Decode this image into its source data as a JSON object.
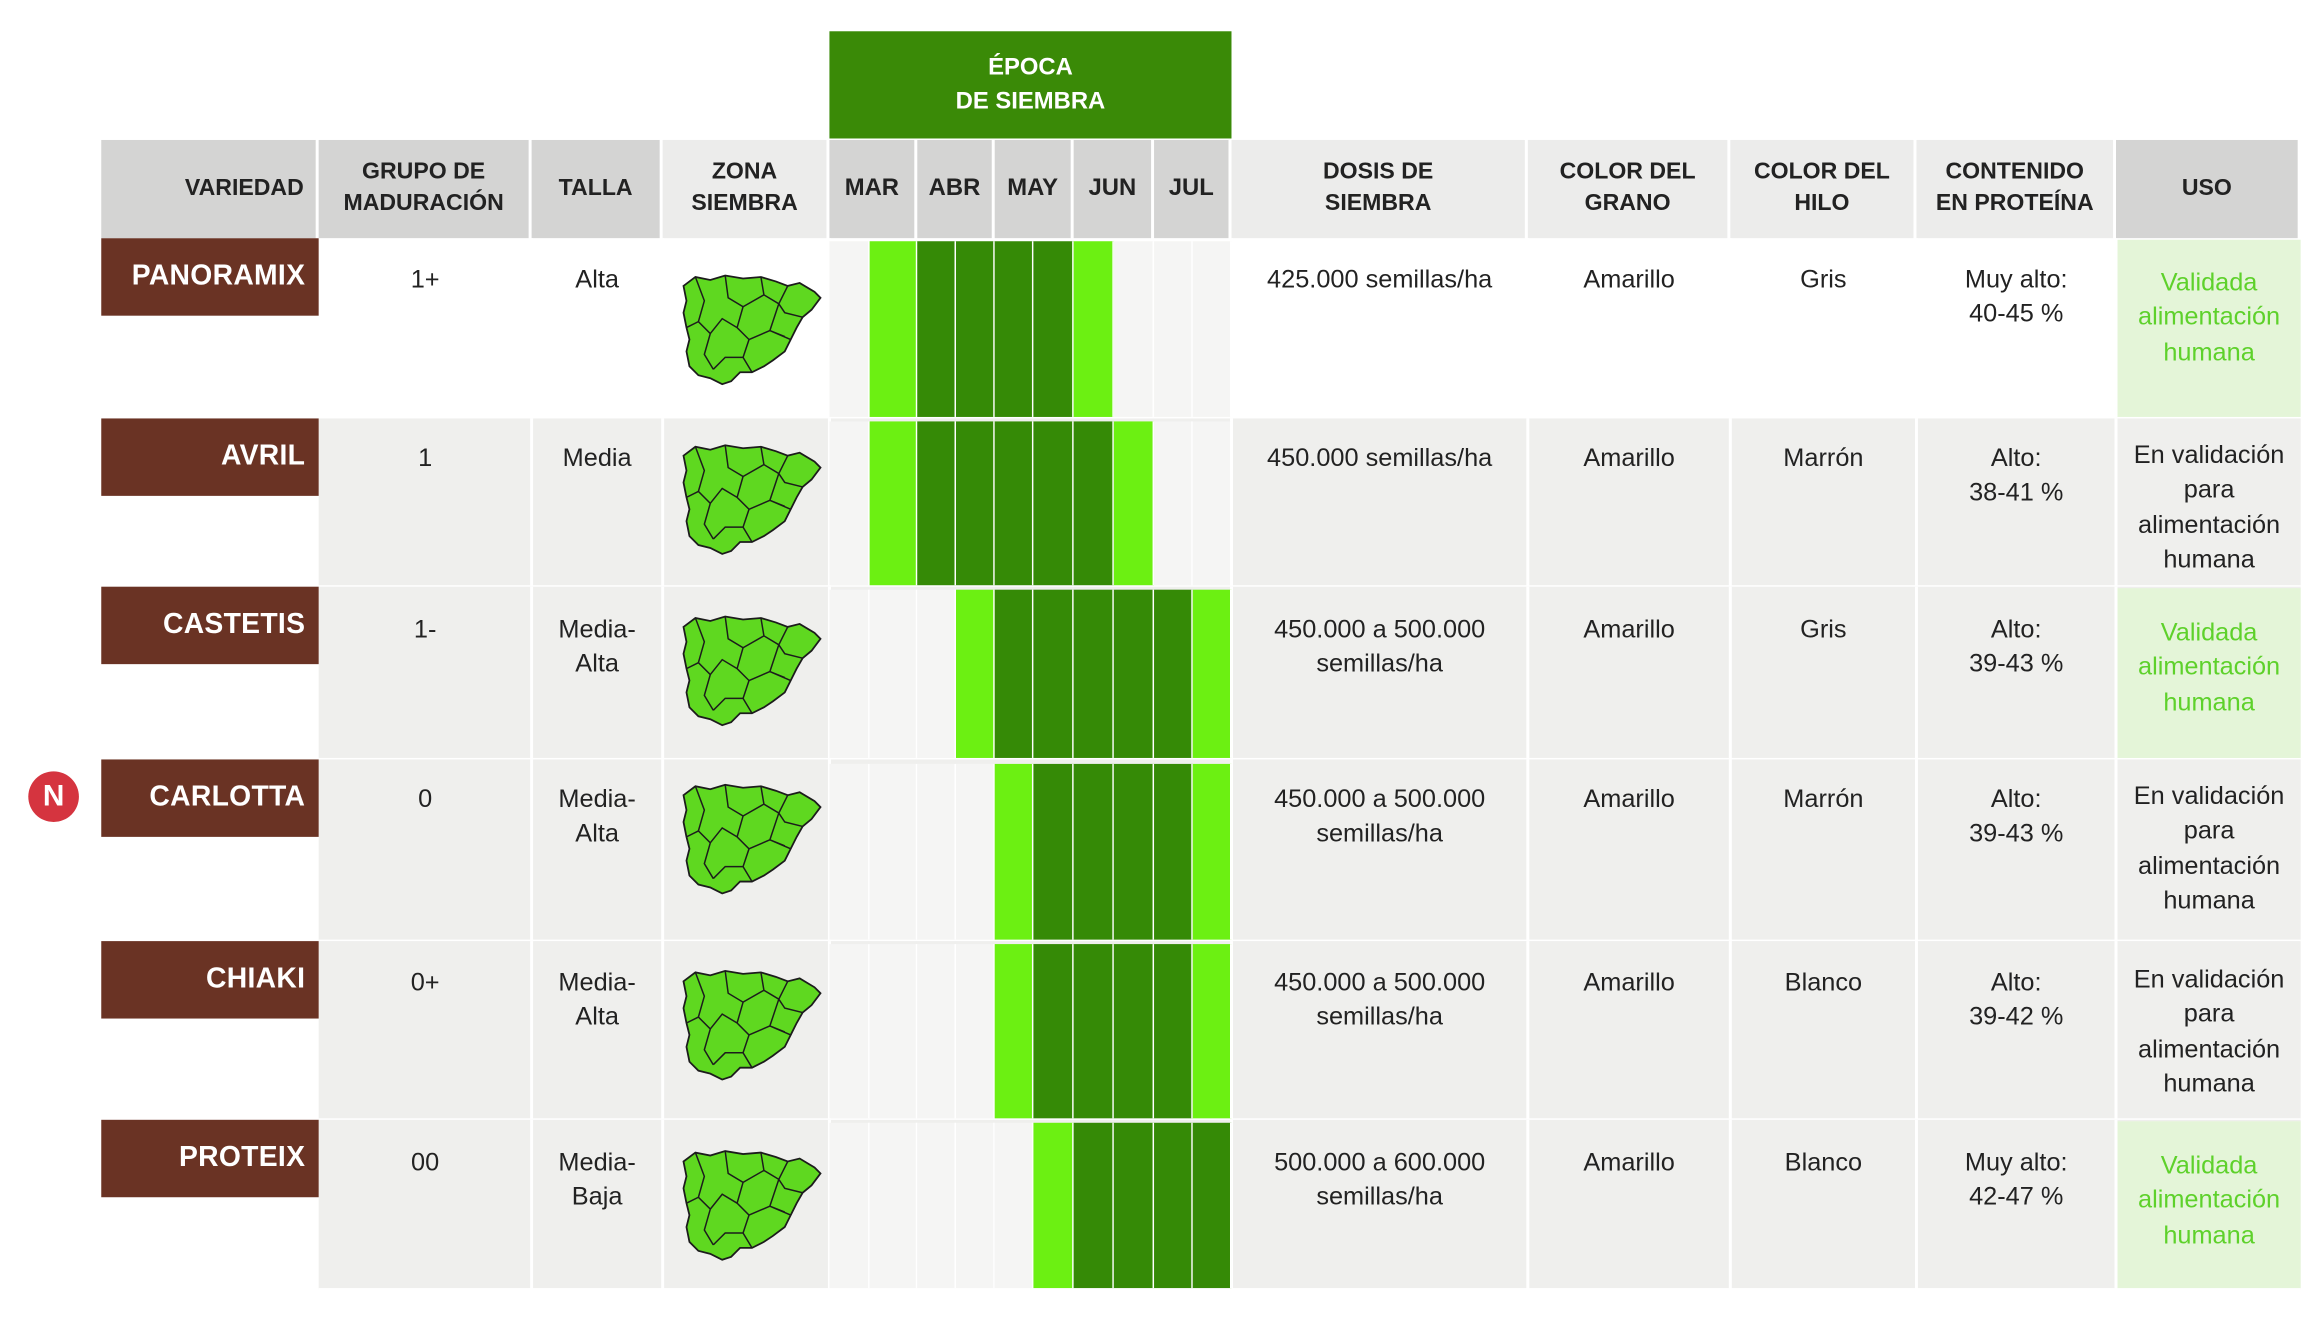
{
  "header": {
    "epoca": "ÉPOCA\nDE SIEMBRA",
    "variedad": "VARIEDAD",
    "grupo": "GRUPO DE\nMADURACIÓN",
    "talla": "TALLA",
    "zona": "ZONA\nSIEMBRA",
    "months": [
      "MAR",
      "ABR",
      "MAY",
      "JUN",
      "JUL"
    ],
    "dosis": "DOSIS DE\nSIEMBRA",
    "color_grano": "COLOR DEL\nGRANO",
    "color_hilo": "COLOR DEL\nHILO",
    "proteina": "CONTENIDO\nEN PROTEÍNA",
    "uso": "USO"
  },
  "badge": {
    "letter": "N",
    "row": "CARLOTTA"
  },
  "colors": {
    "brown": "#6a3324",
    "dark_green": "#358a06",
    "light_green": "#6cf012",
    "badge_red": "#d5343f",
    "uso_validated_text": "#5ed12b"
  },
  "map_icon": "spain-map-icon",
  "rows": [
    {
      "variedad": "PANORAMIX",
      "grupo": "1+",
      "talla": "Alta",
      "dosis": "425.000 semillas/ha",
      "grano": "Amarillo",
      "hilo": "Gris",
      "proteina": "Muy alto:\n40-45 %",
      "uso": "Validada\nalimentación\nhumana",
      "uso_validada": true,
      "calendar": [
        "E",
        "L",
        "D",
        "D",
        "D",
        "D",
        "L",
        "E",
        "E",
        "E"
      ]
    },
    {
      "variedad": "AVRIL",
      "grupo": "1",
      "talla": "Media",
      "dosis": "450.000 semillas/ha",
      "grano": "Amarillo",
      "hilo": "Marrón",
      "proteina": "Alto:\n38-41 %",
      "uso": "En validación\npara\nalimentación\nhumana",
      "uso_validada": false,
      "calendar": [
        "E",
        "L",
        "D",
        "D",
        "D",
        "D",
        "D",
        "L",
        "E",
        "E"
      ]
    },
    {
      "variedad": "CASTETIS",
      "grupo": "1-",
      "talla": "Media-\nAlta",
      "dosis": "450.000 a 500.000\nsemillas/ha",
      "grano": "Amarillo",
      "hilo": "Gris",
      "proteina": "Alto:\n39-43 %",
      "uso": "Validada\nalimentación\nhumana",
      "uso_validada": true,
      "calendar": [
        "E",
        "E",
        "E",
        "L",
        "D",
        "D",
        "D",
        "D",
        "D",
        "L"
      ]
    },
    {
      "variedad": "CARLOTTA",
      "grupo": "0",
      "talla": "Media-\nAlta",
      "dosis": "450.000 a 500.000\nsemillas/ha",
      "grano": "Amarillo",
      "hilo": "Marrón",
      "proteina": "Alto:\n39-43 %",
      "uso": "En validación\npara\nalimentación\nhumana",
      "uso_validada": false,
      "calendar": [
        "E",
        "E",
        "E",
        "E",
        "L",
        "D",
        "D",
        "D",
        "D",
        "L"
      ]
    },
    {
      "variedad": "CHIAKI",
      "grupo": "0+",
      "talla": "Media-\nAlta",
      "dosis": "450.000 a 500.000\nsemillas/ha",
      "grano": "Amarillo",
      "hilo": "Blanco",
      "proteina": "Alto:\n39-42 %",
      "uso": "En validación\npara\nalimentación\nhumana",
      "uso_validada": false,
      "calendar": [
        "E",
        "E",
        "E",
        "E",
        "L",
        "D",
        "D",
        "D",
        "D",
        "L"
      ]
    },
    {
      "variedad": "PROTEIX",
      "grupo": "00",
      "talla": "Media-\nBaja",
      "dosis": "500.000 a 600.000\nsemillas/ha",
      "grano": "Amarillo",
      "hilo": "Blanco",
      "proteina": "Muy alto:\n42-47 %",
      "uso": "Validada\nalimentación\nhumana",
      "uso_validada": true,
      "calendar": [
        "E",
        "E",
        "E",
        "E",
        "E",
        "L",
        "D",
        "D",
        "D",
        "D"
      ]
    }
  ]
}
